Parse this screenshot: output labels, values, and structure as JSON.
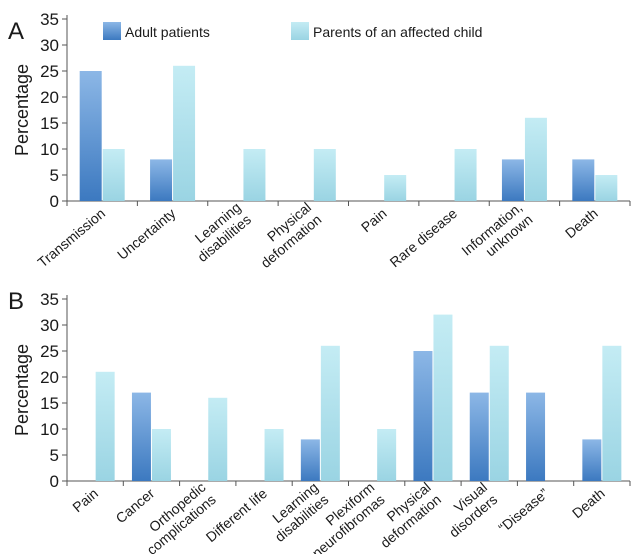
{
  "chart_data": [
    {
      "panel_label": "A",
      "type": "bar",
      "ylabel": "Percentage",
      "ylim": [
        0,
        35
      ],
      "yticks": [
        0,
        5,
        10,
        15,
        20,
        25,
        30,
        35
      ],
      "grid": false,
      "legend_position": "top",
      "categories": [
        "Transmission",
        "Uncertainty",
        "Learning disabilities",
        "Physical deformation",
        "Pain",
        "Rare disease",
        "Information, unknown",
        "Death"
      ],
      "series": [
        {
          "name": "Adult patients",
          "color": "#4a86c8",
          "values": [
            25,
            8,
            0,
            0,
            0,
            0,
            8,
            8
          ]
        },
        {
          "name": "Parents of an affected child",
          "color": "#a8dde9",
          "values": [
            10,
            26,
            10,
            10,
            5,
            10,
            16,
            5
          ]
        }
      ]
    },
    {
      "panel_label": "B",
      "type": "bar",
      "ylabel": "Percentage",
      "ylim": [
        0,
        35
      ],
      "yticks": [
        0,
        5,
        10,
        15,
        20,
        25,
        30,
        35
      ],
      "grid": false,
      "categories": [
        "Pain",
        "Cancer",
        "Orthopedic complications",
        "Different life",
        "Learning disabilities",
        "Plexiform neurofibromas",
        "Physical deformation",
        "Visual disorders",
        "“Disease”",
        "Death"
      ],
      "series": [
        {
          "name": "Adult patients",
          "color": "#4a86c8",
          "values": [
            0,
            17,
            0,
            0,
            8,
            0,
            25,
            17,
            17,
            8
          ]
        },
        {
          "name": "Parents of an affected child",
          "color": "#a8dde9",
          "values": [
            21,
            10,
            16,
            10,
            26,
            10,
            32,
            26,
            0,
            26
          ]
        }
      ]
    }
  ]
}
